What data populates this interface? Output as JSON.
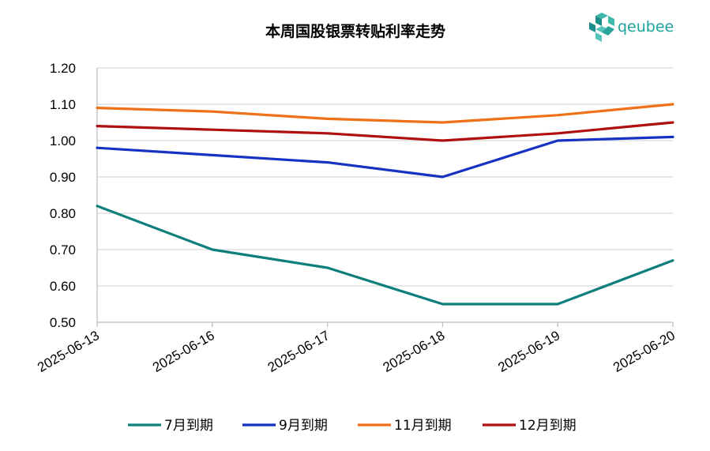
{
  "chart_data": {
    "type": "line",
    "title": "本周国股银票转贴利率走势",
    "categories": [
      "2025-06-13",
      "2025-06-16",
      "2025-06-17",
      "2025-06-18",
      "2025-06-19",
      "2025-06-20"
    ],
    "ylim": [
      0.5,
      1.2
    ],
    "yticks": [
      "0.50",
      "0.60",
      "0.70",
      "0.80",
      "0.90",
      "1.00",
      "1.10",
      "1.20"
    ],
    "grid": true,
    "legend_position": "bottom",
    "series": [
      {
        "name": "7月到期",
        "color": "#0e7f7a",
        "values": [
          0.82,
          0.7,
          0.65,
          0.55,
          0.55,
          0.67
        ]
      },
      {
        "name": "9月到期",
        "color": "#1632c2",
        "values": [
          0.98,
          0.96,
          0.94,
          0.9,
          1.0,
          1.01
        ]
      },
      {
        "name": "11月到期",
        "color": "#f07017",
        "values": [
          1.09,
          1.08,
          1.06,
          1.05,
          1.07,
          1.1
        ]
      },
      {
        "name": "12月到期",
        "color": "#b00f0f",
        "values": [
          1.04,
          1.03,
          1.02,
          1.0,
          1.02,
          1.05
        ]
      }
    ]
  },
  "logo": {
    "text": "qeubee",
    "color": "#1aa39a"
  }
}
